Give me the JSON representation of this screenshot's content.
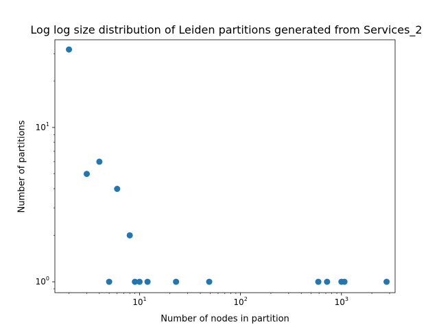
{
  "chart_data": {
    "type": "scatter",
    "title": "Log log size distribution of Leiden partitions generated from Services_2",
    "xlabel": "Number of nodes in partition",
    "ylabel": "Number of partitions",
    "xscale": "log",
    "yscale": "log",
    "xlim": [
      1.45,
      3400
    ],
    "ylim": [
      0.85,
      37
    ],
    "grid": false,
    "color": "#1f77b4",
    "x_ticks": [
      {
        "value": 10,
        "base": "10",
        "exp": "1"
      },
      {
        "value": 100,
        "base": "10",
        "exp": "2"
      },
      {
        "value": 1000,
        "base": "10",
        "exp": "3"
      }
    ],
    "y_ticks": [
      {
        "value": 1,
        "base": "10",
        "exp": "0"
      },
      {
        "value": 10,
        "base": "10",
        "exp": "1"
      }
    ],
    "points": [
      {
        "x": 2,
        "y": 32
      },
      {
        "x": 3,
        "y": 5
      },
      {
        "x": 4,
        "y": 6
      },
      {
        "x": 5,
        "y": 1
      },
      {
        "x": 6,
        "y": 4
      },
      {
        "x": 8,
        "y": 2
      },
      {
        "x": 9,
        "y": 1
      },
      {
        "x": 10,
        "y": 1
      },
      {
        "x": 12,
        "y": 1
      },
      {
        "x": 23,
        "y": 1
      },
      {
        "x": 49,
        "y": 1
      },
      {
        "x": 590,
        "y": 1
      },
      {
        "x": 720,
        "y": 1
      },
      {
        "x": 1000,
        "y": 1
      },
      {
        "x": 1070,
        "y": 1
      },
      {
        "x": 2800,
        "y": 1
      }
    ]
  }
}
